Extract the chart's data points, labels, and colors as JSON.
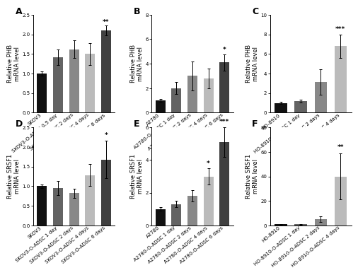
{
  "panels": [
    {
      "label": "A",
      "ylabel": "Relative PHB\nmRNA level",
      "ylim": [
        0,
        2.5
      ],
      "yticks": [
        0.0,
        0.5,
        1.0,
        1.5,
        2.0,
        2.5
      ],
      "categories": [
        "SKOV3",
        "SKOV3-O-ADSC\n0.5 day",
        "SKOV3-O-ADSC\n2 days",
        "SKOV3-O-ADSC\n4 days",
        "SKOV3-O-ADSC\n6 days"
      ],
      "values": [
        1.0,
        1.42,
        1.62,
        1.5,
        2.1
      ],
      "errors": [
        0.06,
        0.2,
        0.22,
        0.28,
        0.12
      ],
      "colors": [
        "#111111",
        "#636363",
        "#888888",
        "#bbbbbb",
        "#404040"
      ],
      "sig": [
        "",
        "",
        "",
        "",
        "**"
      ],
      "sig_pos": [
        null,
        null,
        null,
        null,
        2.24
      ]
    },
    {
      "label": "B",
      "ylabel": "Relative PHB\nmRNA level",
      "ylim": [
        0,
        8
      ],
      "yticks": [
        0,
        2,
        4,
        6,
        8
      ],
      "categories": [
        "A2780",
        "A2780-O-ADSC\n1 day",
        "A2780-O-ADSC\n2 days",
        "A2780-O-ADSC\n4 days",
        "A2780-O-ADSC\n6 days"
      ],
      "values": [
        1.0,
        2.0,
        3.0,
        2.8,
        4.1
      ],
      "errors": [
        0.1,
        0.5,
        1.2,
        0.8,
        0.65
      ],
      "colors": [
        "#111111",
        "#636363",
        "#888888",
        "#bbbbbb",
        "#404040"
      ],
      "sig": [
        "",
        "",
        "",
        "",
        "*"
      ],
      "sig_pos": [
        null,
        null,
        null,
        null,
        4.9
      ]
    },
    {
      "label": "C",
      "ylabel": "Relative PHB\nmRNA level",
      "ylim": [
        0,
        10
      ],
      "yticks": [
        0,
        2,
        4,
        6,
        8,
        10
      ],
      "categories": [
        "HO-8910",
        "HO-8910-O-ADSC\n1 day",
        "HO-8910-O-ADSC\n2 days",
        "HO-8910-O-ADSC\n4 days"
      ],
      "values": [
        1.0,
        1.2,
        3.1,
        6.8
      ],
      "errors": [
        0.1,
        0.15,
        1.3,
        1.2
      ],
      "colors": [
        "#111111",
        "#636363",
        "#888888",
        "#bbbbbb"
      ],
      "sig": [
        "",
        "",
        "",
        "***"
      ],
      "sig_pos": [
        null,
        null,
        null,
        8.2
      ]
    },
    {
      "label": "D",
      "ylabel": "Relative SRSF1\nmRNA level",
      "ylim": [
        0,
        2.5
      ],
      "yticks": [
        0.0,
        0.5,
        1.0,
        1.5,
        2.0,
        2.5
      ],
      "categories": [
        "SKOV3",
        "SKOV3-O-ADSC\n1 day",
        "SKOV3-O-ADSC\n2 days",
        "SKOV3-O-ADSC\n4 days",
        "SKOV3-O-ADSC\n6 days"
      ],
      "values": [
        1.0,
        0.95,
        0.82,
        1.28,
        1.68
      ],
      "errors": [
        0.05,
        0.18,
        0.12,
        0.28,
        0.48
      ],
      "colors": [
        "#111111",
        "#636363",
        "#888888",
        "#bbbbbb",
        "#404040"
      ],
      "sig": [
        "",
        "",
        "",
        "",
        "*"
      ],
      "sig_pos": [
        null,
        null,
        null,
        null,
        2.22
      ]
    },
    {
      "label": "E",
      "ylabel": "Relative SRSF1\nmRNA level",
      "ylim": [
        0,
        6
      ],
      "yticks": [
        0,
        2,
        4,
        6
      ],
      "categories": [
        "A2780",
        "A2780-O-ADSC\n1 day",
        "A2780-O-ADSC\n2 days",
        "A2780-O-ADSC\n4 days",
        "A2780-O-ADSC\n6 days"
      ],
      "values": [
        1.0,
        1.3,
        1.8,
        3.0,
        5.1
      ],
      "errors": [
        0.1,
        0.2,
        0.35,
        0.5,
        0.9
      ],
      "colors": [
        "#111111",
        "#636363",
        "#888888",
        "#bbbbbb",
        "#404040"
      ],
      "sig": [
        "",
        "",
        "",
        "*",
        "***"
      ],
      "sig_pos": [
        null,
        null,
        null,
        3.6,
        6.15
      ]
    },
    {
      "label": "F",
      "ylabel": "Relative SRSF1\nmRNA level",
      "ylim": [
        0,
        80
      ],
      "yticks": [
        0,
        20,
        40,
        60,
        80
      ],
      "categories": [
        "HO-8910",
        "HO-8910-O-ADSC\n1 day",
        "HO-8910-O-ADSC\n2 days",
        "HO-8910-O-ADSC\n4 days"
      ],
      "values": [
        1.0,
        1.0,
        5.0,
        40.0
      ],
      "errors": [
        0.3,
        0.3,
        2.5,
        19.0
      ],
      "colors": [
        "#111111",
        "#636363",
        "#888888",
        "#bbbbbb"
      ],
      "sig": [
        "",
        "",
        "",
        "**"
      ],
      "sig_pos": [
        null,
        null,
        null,
        61.0
      ]
    }
  ],
  "background_color": "#ffffff",
  "bar_width": 0.62,
  "tick_fontsize": 5.0,
  "label_fontsize": 6.0,
  "sig_fontsize": 6.5,
  "panel_label_fontsize": 9
}
